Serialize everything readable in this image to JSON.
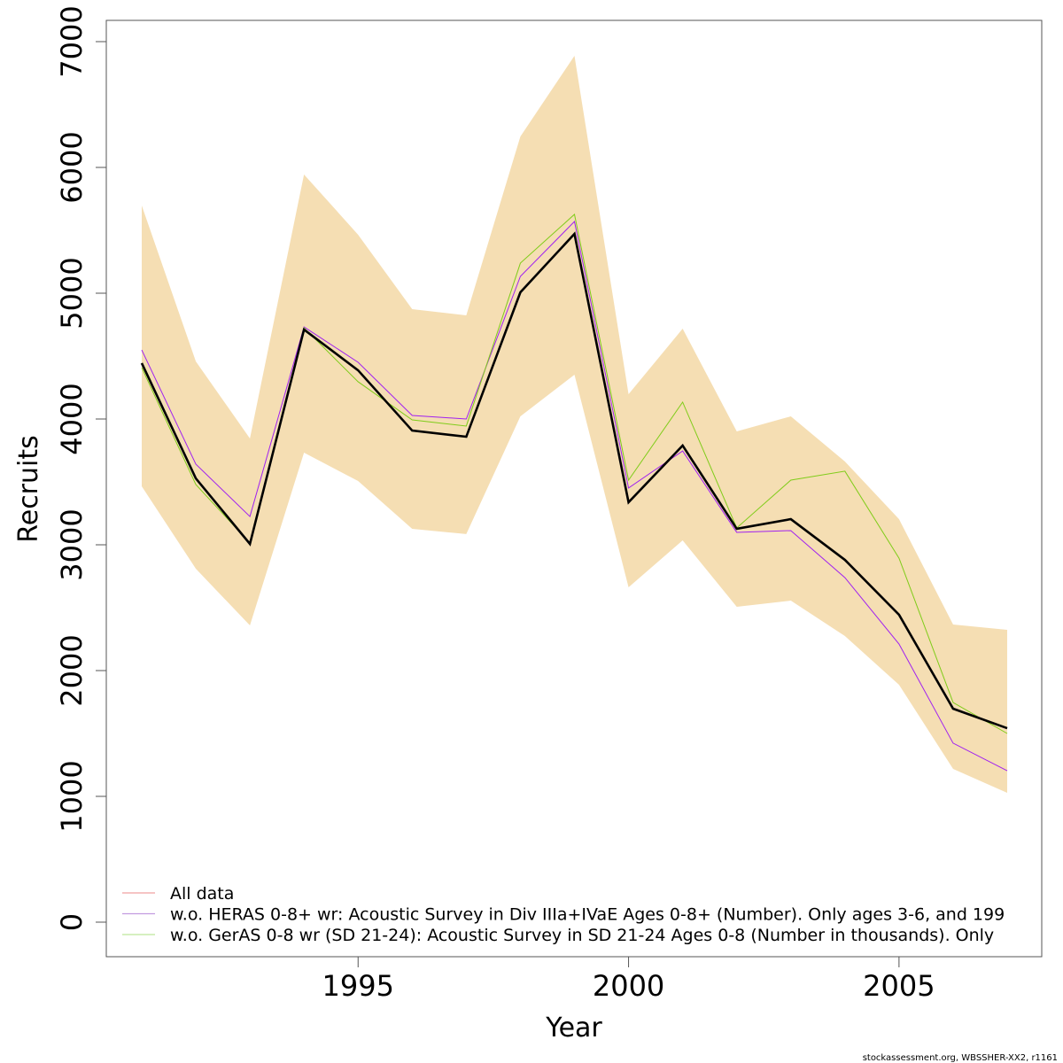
{
  "chart_data": {
    "type": "line",
    "title": "",
    "xlabel": "Year",
    "ylabel": "Recruits",
    "xlim": [
      1990.65,
      2007.35
    ],
    "ylim": [
      -270,
      7170
    ],
    "x_ticks": [
      1995,
      2000,
      2005
    ],
    "y_ticks": [
      0,
      1000,
      2000,
      3000,
      4000,
      5000,
      6000,
      7000
    ],
    "grid": false,
    "legend_position": "bottom-left",
    "x": [
      1991,
      1992,
      1993,
      1994,
      1995,
      1996,
      1997,
      1998,
      1999,
      2000,
      2001,
      2002,
      2003,
      2004,
      2005,
      2006,
      2007
    ],
    "band": {
      "name": "Confidence interval (All data)",
      "color": "#f5deb3",
      "upper": [
        5697,
        4458,
        3845,
        5944,
        5465,
        4873,
        4824,
        6246,
        6887,
        4197,
        4718,
        3901,
        4021,
        3662,
        3204,
        2366,
        2324
      ],
      "lower": [
        3465,
        2810,
        2359,
        3732,
        3507,
        3127,
        3085,
        4021,
        4352,
        2662,
        3035,
        2507,
        2556,
        2275,
        1887,
        1218,
        1028
      ]
    },
    "series": [
      {
        "name": "w.o. HERAS 0-8+ wr: Acoustic Survey in Div IIIa+IVaE Ages 0-8+ (Number). Only ages 3-6, and 199",
        "color": "#a020f0",
        "legend_color": "#c39be0",
        "values": [
          4549,
          3641,
          3225,
          4732,
          4451,
          4028,
          4000,
          5134,
          5570,
          3451,
          3746,
          3099,
          3113,
          2739,
          2211,
          1423,
          1204
        ]
      },
      {
        "name": "w.o. GerAS 0-8 wr (SD 21-24): Acoustic Survey in SD 21-24 Ages 0-8 (Number in thousands). Only",
        "color": "#7fcc19",
        "legend_color": "#bde69a",
        "values": [
          4408,
          3479,
          3014,
          4725,
          4296,
          3993,
          3944,
          5239,
          5627,
          3514,
          4134,
          3134,
          3514,
          3585,
          2894,
          1746,
          1500
        ]
      },
      {
        "name": "All data",
        "color": "#000000",
        "legend_color": "#f0a0a0",
        "values": [
          4444,
          3528,
          3007,
          4711,
          4387,
          3908,
          3859,
          5007,
          5472,
          3338,
          3789,
          3127,
          3204,
          2880,
          2444,
          1697,
          1542
        ]
      }
    ],
    "legend": [
      {
        "label": "All data",
        "color": "#f0a0a0"
      },
      {
        "label": "w.o. HERAS 0-8+ wr: Acoustic Survey in Div IIIa+IVaE Ages 0-8+ (Number). Only ages 3-6, and 199",
        "color": "#c39be0"
      },
      {
        "label": "w.o. GerAS 0-8 wr (SD 21-24): Acoustic Survey in SD 21-24 Ages 0-8 (Number in thousands). Only",
        "color": "#bde69a"
      }
    ],
    "footer": "stockassessment.org, WBSSHER-XX2, r1161"
  }
}
